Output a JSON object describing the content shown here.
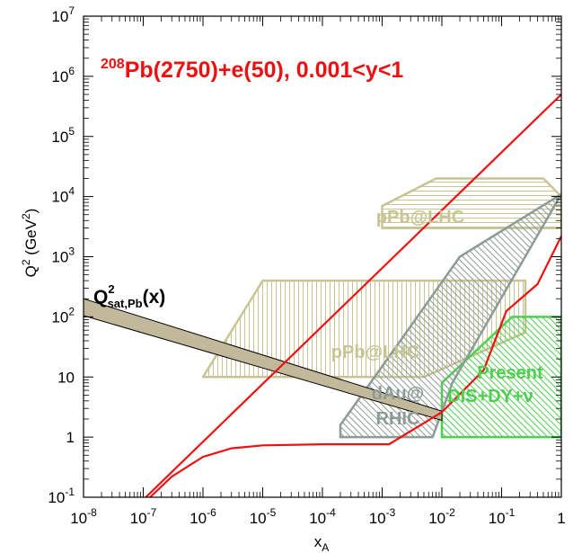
{
  "chart_data": {
    "type": "area",
    "title": {
      "sup": "208",
      "main": "Pb(2750)+e(50), 0.001<y<1"
    },
    "xlabel": {
      "base": "x",
      "sub": "A"
    },
    "ylabel": {
      "main": "Q",
      "sup": "2",
      "unit_open": " (GeV",
      "unit_sup": "2",
      "unit_close": ")"
    },
    "x_scale": "log",
    "y_scale": "log",
    "xlim": [
      1e-08,
      1
    ],
    "ylim": [
      0.1,
      10000000.0
    ],
    "x_ticks": [
      {
        "value": 1e-08,
        "base": "10",
        "exp": "-8"
      },
      {
        "value": 1e-07,
        "base": "10",
        "exp": "-7"
      },
      {
        "value": 1e-06,
        "base": "10",
        "exp": "-6"
      },
      {
        "value": 1e-05,
        "base": "10",
        "exp": "-5"
      },
      {
        "value": 0.0001,
        "base": "10",
        "exp": "-4"
      },
      {
        "value": 0.001,
        "base": "10",
        "exp": "-3"
      },
      {
        "value": 0.01,
        "base": "10",
        "exp": "-2"
      },
      {
        "value": 0.1,
        "base": "10",
        "exp": "-1"
      },
      {
        "value": 1,
        "base": "1",
        "exp": ""
      }
    ],
    "y_ticks": [
      {
        "value": 0.1,
        "base": "10",
        "exp": "-1"
      },
      {
        "value": 1,
        "base": "1",
        "exp": ""
      },
      {
        "value": 10,
        "base": "10",
        "exp": ""
      },
      {
        "value": 100,
        "base": "10",
        "exp": "2"
      },
      {
        "value": 1000,
        "base": "10",
        "exp": "3"
      },
      {
        "value": 10000,
        "base": "10",
        "exp": "4"
      },
      {
        "value": 100000,
        "base": "10",
        "exp": "5"
      },
      {
        "value": 1000000,
        "base": "10",
        "exp": "6"
      },
      {
        "value": 10000000,
        "base": "10",
        "exp": "7"
      }
    ],
    "series": [
      {
        "kind": "kinematic-limit-upper",
        "color": "#ee1111",
        "points": [
          [
            1.1e-07,
            0.1
          ],
          [
            1,
            500000.0
          ]
        ]
      },
      {
        "kind": "kinematic-limit-lower",
        "color": "#ee1111",
        "points": [
          [
            1.3e-07,
            0.1
          ],
          [
            3e-07,
            0.22
          ],
          [
            1e-06,
            0.47
          ],
          [
            3e-06,
            0.65
          ],
          [
            1e-05,
            0.73
          ],
          [
            0.0001,
            0.76
          ],
          [
            0.0013,
            0.76
          ],
          [
            0.01,
            2.6
          ],
          [
            0.05,
            13
          ],
          [
            0.12,
            125
          ],
          [
            0.4,
            350
          ],
          [
            1,
            2200
          ]
        ]
      }
    ],
    "regions": [
      {
        "label": "pPb@LHC",
        "color": "#c8c493",
        "hatch": "horizontal",
        "label_anchor": [
          0.0015,
          7000
        ],
        "polygon": [
          [
            0.001,
            3000
          ],
          [
            1,
            3000
          ],
          [
            1,
            10000
          ],
          [
            0.5,
            20000
          ],
          [
            0.008,
            20000
          ],
          [
            0.001,
            7000
          ]
        ]
      },
      {
        "label": "pPb@LHC",
        "color": "#c8c493",
        "hatch": "vertical",
        "label_anchor": [
          1e-05,
          15
        ],
        "polygon": [
          [
            1e-06,
            10
          ],
          [
            0.005,
            10
          ],
          [
            0.25,
            55
          ],
          [
            0.25,
            400
          ],
          [
            1e-05,
            400
          ]
        ]
      },
      {
        "label": "Present",
        "label2": "DIS+DY+ν",
        "color": "#4fcf4f",
        "hatch": "diagonal",
        "label_anchor": [
          0.03,
          10
        ],
        "polygon": [
          [
            0.01,
            1.0
          ],
          [
            1,
            1.0
          ],
          [
            1,
            100
          ],
          [
            0.15,
            100
          ],
          [
            0.01,
            8
          ]
        ]
      },
      {
        "label": "dAu@",
        "label2": "RHIC",
        "color": "#8c9b96",
        "hatch": "diagonal",
        "label_anchor": [
          0.0015,
          3
        ],
        "polygon": [
          [
            0.0002,
            1.0
          ],
          [
            0.007,
            1.0
          ],
          [
            0.015,
            8
          ],
          [
            1,
            11000
          ],
          [
            0.02,
            1000
          ],
          [
            0.001,
            15
          ],
          [
            0.0002,
            1.6
          ]
        ]
      }
    ],
    "band": {
      "label_base": "Q",
      "label_sup": "2",
      "label_sub": "sat,Pb",
      "label_suffix": "(x)",
      "color": "#c2b89a",
      "x": [
        1e-08,
        0.01
      ],
      "y_upper": [
        200,
        2.7
      ],
      "y_lower": [
        105,
        1.9
      ]
    }
  }
}
